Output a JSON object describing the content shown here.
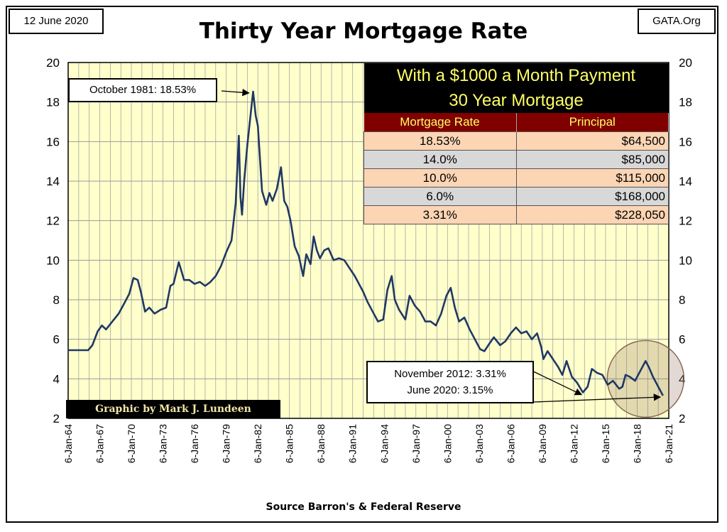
{
  "header": {
    "date": "12 June 2020",
    "site": "GATA.Org",
    "title": "Thirty Year Mortgage Rate"
  },
  "footer": {
    "source": "Source Barron's & Federal Reserve"
  },
  "credit": "Graphic by Mark J. Lundeen",
  "annotations": {
    "peak": "October 1981: 18.53%",
    "low_1": "November 2012: 3.31%",
    "low_2": "June 2020: 3.15%"
  },
  "table": {
    "title_1": "With a $1000 a Month Payment",
    "title_2": "30 Year Mortgage",
    "col_rate": "Mortgage Rate",
    "col_principal": "Principal",
    "rows": [
      {
        "rate": "18.53%",
        "principal": "$64,500"
      },
      {
        "rate": "14.0%",
        "principal": "$85,000"
      },
      {
        "rate": "10.0%",
        "principal": "$115,000"
      },
      {
        "rate": "6.0%",
        "principal": "$168,000"
      },
      {
        "rate": "3.31%",
        "principal": "$228,050"
      }
    ]
  },
  "colors": {
    "plot_background": "#ffffcc",
    "line": "#1f3864",
    "grid": "#999999",
    "table_header": "#800000",
    "row_a": "#fcd5b4",
    "row_b": "#d8d8d8"
  },
  "chart_data": {
    "type": "line",
    "title": "Thirty Year Mortgage Rate",
    "xlabel": "",
    "ylabel": "",
    "ylim": [
      2,
      20
    ],
    "xlim": [
      1964.0,
      2021.0
    ],
    "yticks": [
      2,
      4,
      6,
      8,
      10,
      12,
      14,
      16,
      18,
      20
    ],
    "xtick_labels": [
      "6-Jan-64",
      "6-Jan-67",
      "6-Jan-70",
      "6-Jan-73",
      "6-Jan-76",
      "6-Jan-79",
      "6-Jan-82",
      "6-Jan-85",
      "6-Jan-88",
      "6-Jan-91",
      "6-Jan-94",
      "6-Jan-97",
      "6-Jan-00",
      "6-Jan-03",
      "6-Jan-06",
      "6-Jan-09",
      "6-Jan-12",
      "6-Jan-15",
      "6-Jan-18",
      "6-Jan-21"
    ],
    "xtick_years": [
      1964,
      1967,
      1970,
      1973,
      1976,
      1979,
      1982,
      1985,
      1988,
      1991,
      1994,
      1997,
      2000,
      2003,
      2006,
      2009,
      2012,
      2015,
      2018,
      2021
    ],
    "grid": true,
    "series": [
      {
        "x": [
          1964.0,
          1965.0,
          1965.9,
          1966.3,
          1966.8,
          1967.2,
          1967.6,
          1968.2,
          1968.8,
          1969.3,
          1969.8,
          1970.2,
          1970.6,
          1970.9,
          1971.3,
          1971.7,
          1972.2,
          1972.8,
          1973.3,
          1973.7,
          1974.0,
          1974.5,
          1975.0,
          1975.5,
          1976.0,
          1976.5,
          1977.0,
          1977.5,
          1978.0,
          1978.5,
          1979.0,
          1979.5,
          1979.9,
          1980.2,
          1980.35,
          1980.5,
          1980.7,
          1981.0,
          1981.3,
          1981.55,
          1981.8,
          1982.0,
          1982.4,
          1982.8,
          1983.1,
          1983.4,
          1983.8,
          1984.2,
          1984.5,
          1984.8,
          1985.1,
          1985.5,
          1985.9,
          1986.3,
          1986.6,
          1987.0,
          1987.3,
          1987.6,
          1987.9,
          1988.3,
          1988.7,
          1989.2,
          1989.7,
          1990.2,
          1990.7,
          1991.2,
          1991.7,
          1992.0,
          1992.4,
          1992.9,
          1993.4,
          1993.9,
          1994.3,
          1994.7,
          1995.0,
          1995.4,
          1996.0,
          1996.4,
          1996.9,
          1997.4,
          1997.9,
          1998.4,
          1998.9,
          1999.4,
          1999.9,
          2000.3,
          2000.7,
          2001.1,
          2001.6,
          2002.1,
          2002.6,
          2003.1,
          2003.5,
          2004.0,
          2004.4,
          2005.0,
          2005.5,
          2006.0,
          2006.5,
          2007.0,
          2007.5,
          2008.0,
          2008.5,
          2008.9,
          2009.1,
          2009.5,
          2010.0,
          2010.5,
          2010.9,
          2011.3,
          2011.8,
          2012.3,
          2012.85,
          2013.3,
          2013.7,
          2014.2,
          2014.7,
          2015.2,
          2015.7,
          2016.3,
          2016.6,
          2016.9,
          2017.3,
          2017.8,
          2018.3,
          2018.8,
          2019.1,
          2019.5,
          2019.9,
          2020.2,
          2020.45
        ],
        "y": [
          5.45,
          5.45,
          5.45,
          5.7,
          6.4,
          6.7,
          6.5,
          6.9,
          7.3,
          7.8,
          8.3,
          9.1,
          9.0,
          8.4,
          7.4,
          7.6,
          7.3,
          7.5,
          7.6,
          8.7,
          8.8,
          9.9,
          9.0,
          9.0,
          8.8,
          8.9,
          8.7,
          8.9,
          9.2,
          9.7,
          10.4,
          11.0,
          12.9,
          16.3,
          13.2,
          12.3,
          14.0,
          15.8,
          17.3,
          18.53,
          17.3,
          16.8,
          13.5,
          12.8,
          13.4,
          13.0,
          13.6,
          14.7,
          13.0,
          12.7,
          12.0,
          10.7,
          10.2,
          9.2,
          10.3,
          9.8,
          11.2,
          10.5,
          10.1,
          10.5,
          10.6,
          10.0,
          10.1,
          10.0,
          9.6,
          9.2,
          8.7,
          8.4,
          7.9,
          7.4,
          6.9,
          7.0,
          8.5,
          9.2,
          8.0,
          7.5,
          7.0,
          8.2,
          7.7,
          7.4,
          6.9,
          6.9,
          6.7,
          7.3,
          8.2,
          8.6,
          7.6,
          6.9,
          7.1,
          6.5,
          6.0,
          5.5,
          5.4,
          5.8,
          6.1,
          5.7,
          5.9,
          6.3,
          6.6,
          6.3,
          6.4,
          6.0,
          6.3,
          5.6,
          5.0,
          5.4,
          5.0,
          4.6,
          4.2,
          4.9,
          4.1,
          3.8,
          3.31,
          3.6,
          4.5,
          4.3,
          4.2,
          3.7,
          3.9,
          3.5,
          3.6,
          4.2,
          4.1,
          3.9,
          4.4,
          4.9,
          4.6,
          4.1,
          3.7,
          3.4,
          3.15
        ]
      }
    ]
  }
}
